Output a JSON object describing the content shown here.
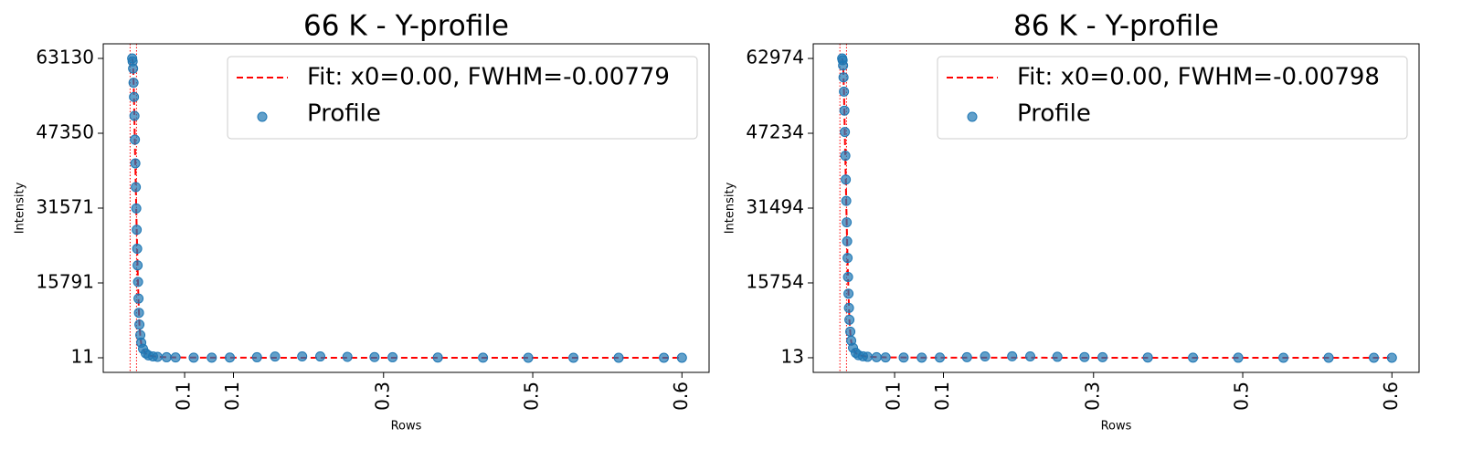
{
  "chart_data": [
    {
      "type": "scatter",
      "title": "66 K - Y-profile",
      "xlabel": "Rows",
      "ylabel": "Intensity",
      "xlim": [
        -0.02,
        0.65
      ],
      "ylim": [
        -3068,
        66209
      ],
      "xticks": [
        {
          "value": 0.07,
          "label": "0.1"
        },
        {
          "value": 0.124,
          "label": "0.1"
        },
        {
          "value": 0.29,
          "label": "0.3"
        },
        {
          "value": 0.455,
          "label": "0.5"
        },
        {
          "value": 0.62,
          "label": "0.6"
        }
      ],
      "yticks": [
        11,
        15791,
        31571,
        47350,
        63130
      ],
      "vlines": [
        0.0097,
        0.0168
      ],
      "vline_color": "#ff0000",
      "legend": "upper right",
      "series": [
        {
          "name": "Fit: x0=0.00, FWHM=-0.00779",
          "color": "#ff0000",
          "style": "dashed-line",
          "x": [
            0.012,
            0.013,
            0.014,
            0.015,
            0.016,
            0.017,
            0.018,
            0.019,
            0.02,
            0.021,
            0.022,
            0.024,
            0.027,
            0.03,
            0.04,
            0.06,
            0.1,
            0.2,
            0.3,
            0.4,
            0.5,
            0.62
          ],
          "values": [
            63130,
            62000,
            55000,
            45000,
            36000,
            27000,
            19000,
            12000,
            7000,
            4500,
            3000,
            1800,
            900,
            500,
            200,
            80,
            30,
            15,
            12,
            11,
            11,
            11
          ]
        },
        {
          "name": "Profile",
          "color": "#1f77b4",
          "style": "points",
          "x": [
            0.012,
            0.0125,
            0.013,
            0.0135,
            0.014,
            0.0145,
            0.015,
            0.0155,
            0.016,
            0.0165,
            0.017,
            0.0175,
            0.018,
            0.0185,
            0.019,
            0.0195,
            0.02,
            0.021,
            0.022,
            0.024,
            0.027,
            0.03,
            0.035,
            0.04,
            0.05,
            0.06,
            0.08,
            0.1,
            0.12,
            0.15,
            0.17,
            0.2,
            0.22,
            0.25,
            0.28,
            0.3,
            0.35,
            0.4,
            0.45,
            0.5,
            0.55,
            0.6,
            0.62
          ],
          "values": [
            63130,
            62500,
            61000,
            58000,
            55000,
            51000,
            46000,
            41000,
            36000,
            31500,
            27000,
            23000,
            19500,
            16000,
            12500,
            9500,
            7000,
            4800,
            3200,
            1900,
            950,
            520,
            300,
            200,
            120,
            80,
            40,
            30,
            60,
            120,
            280,
            300,
            290,
            200,
            150,
            120,
            60,
            30,
            15,
            12,
            11,
            11,
            11
          ]
        }
      ]
    },
    {
      "type": "scatter",
      "title": "86 K - Y-profile",
      "xlabel": "Rows",
      "ylabel": "Intensity",
      "xlim": [
        -0.02,
        0.65
      ],
      "ylim": [
        -3067,
        66053
      ],
      "xticks": [
        {
          "value": 0.07,
          "label": "0.1"
        },
        {
          "value": 0.124,
          "label": "0.1"
        },
        {
          "value": 0.29,
          "label": "0.3"
        },
        {
          "value": 0.455,
          "label": "0.5"
        },
        {
          "value": 0.62,
          "label": "0.6"
        }
      ],
      "yticks": [
        13,
        15754,
        31494,
        47234,
        62974
      ],
      "vlines": [
        0.0095,
        0.0168
      ],
      "vline_color": "#ff0000",
      "legend": "upper right",
      "series": [
        {
          "name": "Fit: x0=0.00, FWHM=-0.00798",
          "color": "#ff0000",
          "style": "dashed-line",
          "x": [
            0.012,
            0.013,
            0.014,
            0.015,
            0.016,
            0.017,
            0.018,
            0.019,
            0.02,
            0.021,
            0.022,
            0.024,
            0.027,
            0.03,
            0.04,
            0.06,
            0.1,
            0.2,
            0.3,
            0.4,
            0.5,
            0.62
          ],
          "values": [
            62974,
            62000,
            56000,
            46500,
            37500,
            28500,
            20500,
            13500,
            8000,
            5200,
            3400,
            2000,
            1000,
            550,
            220,
            90,
            35,
            18,
            14,
            13,
            13,
            13
          ]
        },
        {
          "name": "Profile",
          "color": "#1f77b4",
          "style": "points",
          "x": [
            0.012,
            0.0125,
            0.013,
            0.0135,
            0.014,
            0.0145,
            0.015,
            0.0155,
            0.016,
            0.0165,
            0.017,
            0.0175,
            0.018,
            0.0185,
            0.019,
            0.0195,
            0.02,
            0.021,
            0.022,
            0.024,
            0.027,
            0.03,
            0.035,
            0.04,
            0.05,
            0.06,
            0.08,
            0.1,
            0.12,
            0.15,
            0.17,
            0.2,
            0.22,
            0.25,
            0.28,
            0.3,
            0.35,
            0.4,
            0.45,
            0.5,
            0.55,
            0.6,
            0.62
          ],
          "values": [
            62974,
            62600,
            61500,
            59000,
            56000,
            52000,
            47500,
            42500,
            37500,
            33000,
            28500,
            24500,
            21000,
            17000,
            13500,
            10500,
            8000,
            5500,
            3600,
            2100,
            1050,
            560,
            320,
            210,
            130,
            85,
            45,
            35,
            60,
            130,
            290,
            310,
            300,
            210,
            160,
            130,
            65,
            35,
            18,
            14,
            13,
            13,
            13
          ]
        }
      ]
    }
  ]
}
